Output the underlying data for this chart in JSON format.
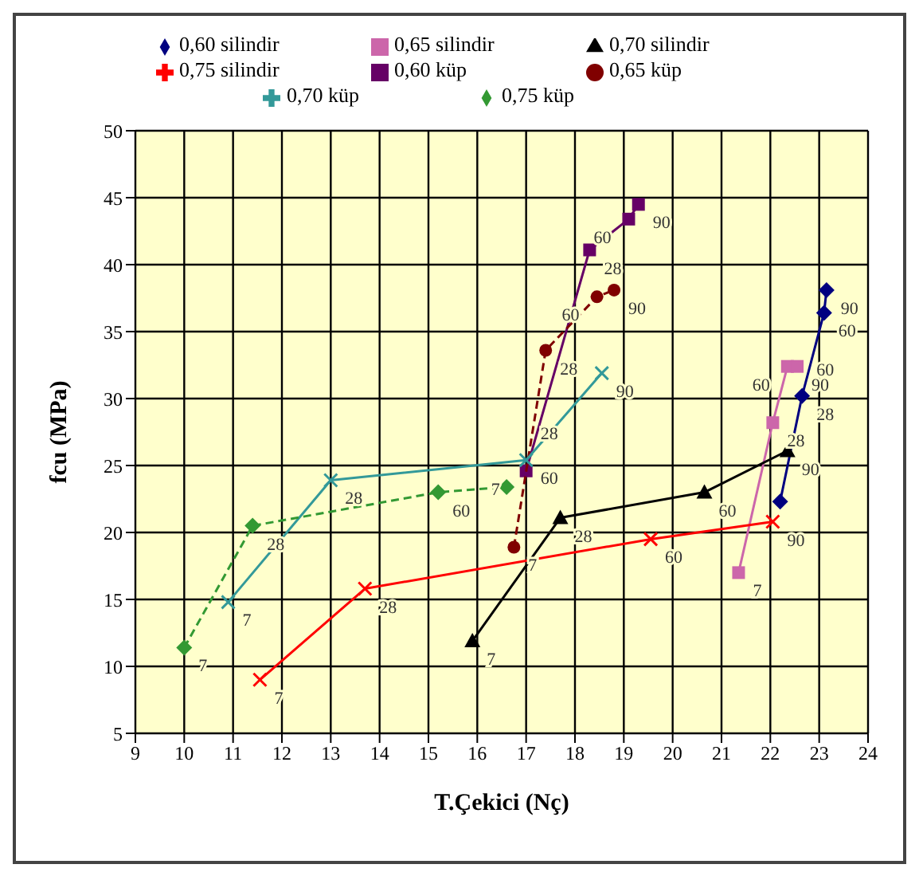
{
  "chart_data": {
    "type": "line",
    "xlabel": "T.Çekici (Nç)",
    "ylabel": "fcu (MPa)",
    "xlim": [
      9,
      24
    ],
    "xticks": [
      9,
      10,
      11,
      12,
      13,
      14,
      15,
      16,
      17,
      18,
      19,
      20,
      21,
      22,
      23,
      24
    ],
    "ylim": [
      5,
      50
    ],
    "yticks": [
      5,
      10,
      15,
      20,
      25,
      30,
      35,
      40,
      45,
      50
    ],
    "grid": true,
    "legend": "top",
    "series": [
      {
        "name": "0,60 silindir",
        "color": "#000080",
        "marker": "diamond",
        "line_style": "solid",
        "x": [
          22.2,
          22.65,
          23.1,
          23.15
        ],
        "values": [
          22.3,
          30.2,
          36.4,
          38.1
        ]
      },
      {
        "name": "0,65 silindir",
        "color": "#cc66aa",
        "marker": "square",
        "line_style": "solid",
        "x": [
          21.35,
          22.05,
          22.35,
          22.55
        ],
        "values": [
          17.0,
          28.2,
          32.4,
          32.4
        ]
      },
      {
        "name": "0,70 silindir",
        "color": "#000000",
        "marker": "triangle",
        "line_style": "solid",
        "x": [
          15.9,
          17.7,
          20.65,
          22.35
        ],
        "values": [
          11.9,
          21.1,
          23.0,
          26.1
        ]
      },
      {
        "name": "0,75 silindir",
        "color": "#ff0000",
        "marker": "cross",
        "line_style": "solid",
        "x": [
          11.55,
          13.7,
          19.55,
          22.05
        ],
        "values": [
          9.0,
          15.8,
          19.5,
          20.8
        ]
      },
      {
        "name": "0,60 küp",
        "color": "#660066",
        "marker": "square",
        "line_style": "solid",
        "x": [
          17.0,
          18.3,
          19.1,
          19.3
        ],
        "values": [
          24.6,
          41.1,
          43.4,
          44.5
        ]
      },
      {
        "name": "0,65 küp",
        "color": "#800000",
        "marker": "circle",
        "line_style": "dashed",
        "x": [
          16.75,
          17.4,
          18.45,
          18.8
        ],
        "values": [
          18.9,
          33.6,
          37.6,
          38.1
        ]
      },
      {
        "name": "0,70 küp",
        "color": "#339999",
        "marker": "cross",
        "line_style": "solid",
        "x": [
          10.9,
          13.0,
          17.0,
          18.55
        ],
        "values": [
          14.8,
          23.9,
          25.4,
          31.9
        ]
      },
      {
        "name": "0,75 küp",
        "color": "#339933",
        "marker": "diamond",
        "line_style": "dashed",
        "x": [
          10.0,
          11.4,
          15.2,
          16.6
        ],
        "values": [
          11.4,
          20.5,
          23.0,
          23.4
        ]
      }
    ],
    "annotations": [
      {
        "text": "28",
        "x": 22.65,
        "y": 30.2
      },
      {
        "text": "60",
        "x": 23.1,
        "y": 36.4
      },
      {
        "text": "90",
        "x": 23.15,
        "y": 38.1
      },
      {
        "text": "60",
        "x": 22.65,
        "y": 30.2
      },
      {
        "text": "7",
        "x": 21.35,
        "y": 17.0
      },
      {
        "text": "28",
        "x": 22.05,
        "y": 28.2
      },
      {
        "text": "60",
        "x": 22.35,
        "y": 32.4
      },
      {
        "text": "90",
        "x": 22.55,
        "y": 32.4
      },
      {
        "text": "7",
        "x": 15.9,
        "y": 11.9
      },
      {
        "text": "28",
        "x": 17.7,
        "y": 21.1
      },
      {
        "text": "60",
        "x": 20.65,
        "y": 23.0
      },
      {
        "text": "90",
        "x": 22.35,
        "y": 26.1
      },
      {
        "text": "7",
        "x": 11.55,
        "y": 9.0
      },
      {
        "text": "28",
        "x": 13.7,
        "y": 15.8
      },
      {
        "text": "60",
        "x": 19.55,
        "y": 19.5
      },
      {
        "text": "90",
        "x": 22.05,
        "y": 20.8
      },
      {
        "text": "7",
        "x": 17.0,
        "y": 24.6
      },
      {
        "text": "28",
        "x": 18.3,
        "y": 41.1
      },
      {
        "text": "60",
        "x": 19.1,
        "y": 43.4
      },
      {
        "text": "90",
        "x": 19.3,
        "y": 44.5
      },
      {
        "text": "7",
        "x": 16.75,
        "y": 18.9
      },
      {
        "text": "28",
        "x": 17.4,
        "y": 33.6
      },
      {
        "text": "60",
        "x": 18.45,
        "y": 37.6
      },
      {
        "text": "90",
        "x": 18.8,
        "y": 38.1
      },
      {
        "text": "7",
        "x": 10.9,
        "y": 14.8
      },
      {
        "text": "28",
        "x": 13.0,
        "y": 23.9
      },
      {
        "text": "60",
        "x": 17.0,
        "y": 25.4
      },
      {
        "text": "90",
        "x": 18.55,
        "y": 31.9
      },
      {
        "text": "28",
        "x": 17.0,
        "y": 25.4
      },
      {
        "text": "7",
        "x": 10.0,
        "y": 11.4
      },
      {
        "text": "28",
        "x": 11.4,
        "y": 20.5
      },
      {
        "text": "60",
        "x": 15.2,
        "y": 23.0
      }
    ]
  }
}
